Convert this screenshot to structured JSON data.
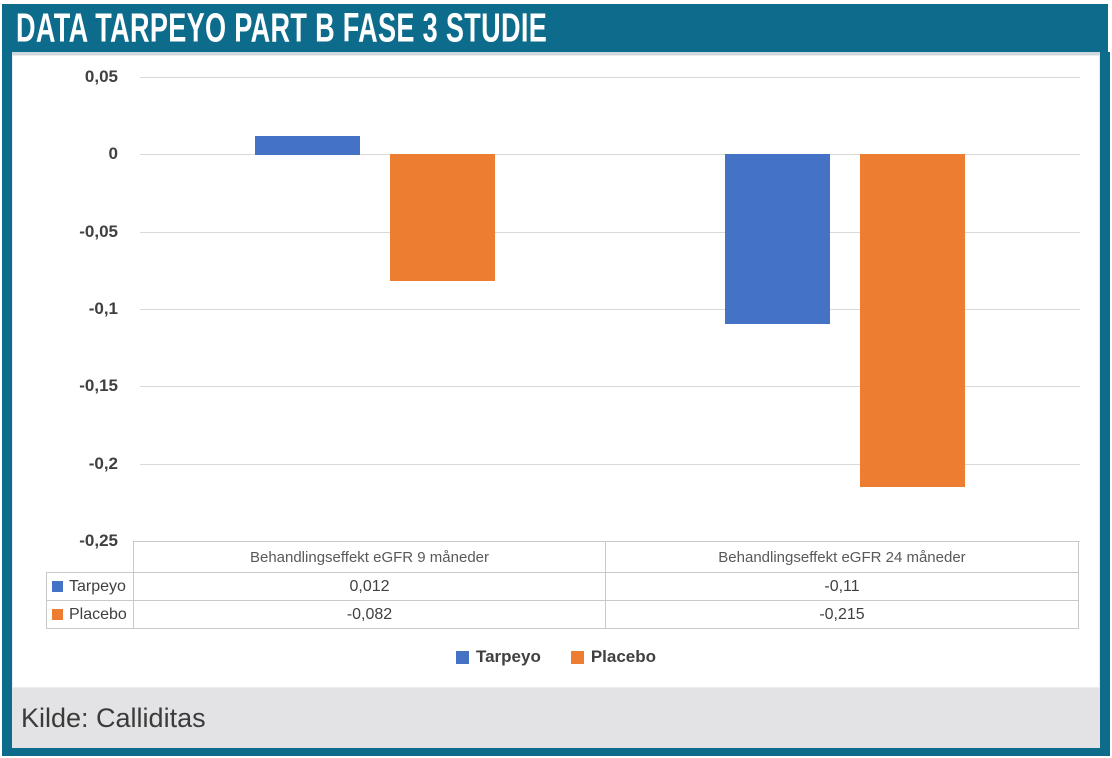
{
  "header": {
    "title": "DATA TARPEYO PART B FASE 3 STUDIE"
  },
  "footer": {
    "source": "Kilde: Calliditas"
  },
  "colors": {
    "frame_teal": "#0d6c8c",
    "tarpeyo_blue": "#4472c4",
    "placebo_orange": "#ed7d31",
    "gridline": "#d9d9d9",
    "footer_bg": "#e3e3e5"
  },
  "chart_data": {
    "type": "bar",
    "title": "",
    "xlabel": "",
    "ylabel": "",
    "categories": [
      "Behandlingseffekt eGFR 9 måneder",
      "Behandlingseffekt eGFR 24 måneder"
    ],
    "series": [
      {
        "name": "Tarpeyo",
        "color": "#4472c4",
        "values": [
          0.012,
          -0.11
        ],
        "display": [
          "0,012",
          "-0,11"
        ]
      },
      {
        "name": "Placebo",
        "color": "#ed7d31",
        "values": [
          -0.082,
          -0.215
        ],
        "display": [
          "-0,082",
          "-0,215"
        ]
      }
    ],
    "yticks": [
      0.05,
      0,
      -0.05,
      -0.1,
      -0.15,
      -0.2,
      -0.25
    ],
    "ytick_labels": [
      "0,05",
      "0",
      "-0,05",
      "-0,1",
      "-0,15",
      "-0,2",
      "-0,25"
    ],
    "ylim": [
      -0.25,
      0.05
    ],
    "grid": true,
    "legend_position": "bottom",
    "data_table": true
  }
}
